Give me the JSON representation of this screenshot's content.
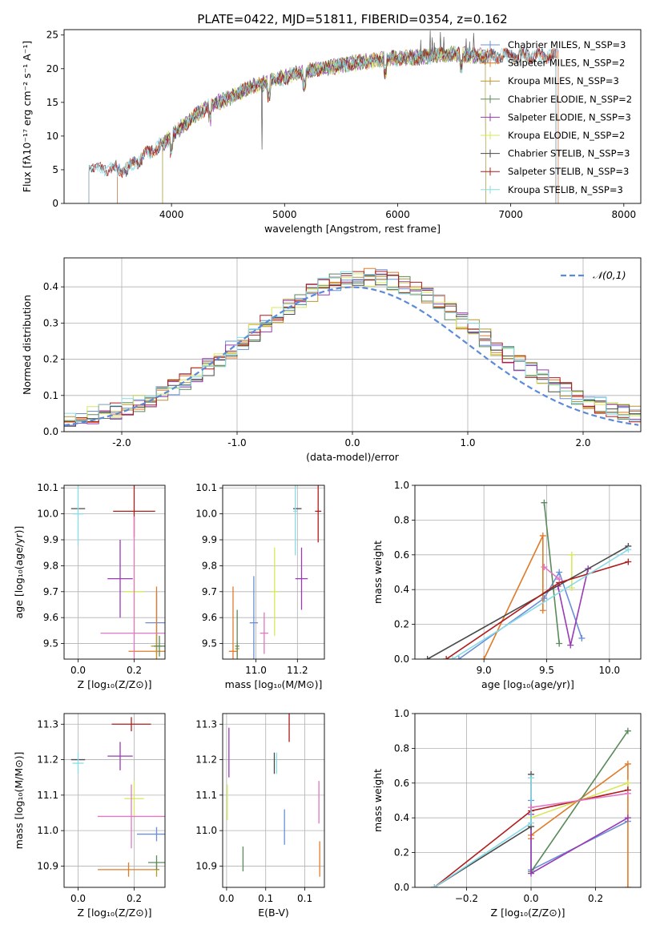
{
  "figure": {
    "title": "PLATE=0422, MJD=51811, FIBERID=0354, z=0.162"
  },
  "colors": [
    "#6a8fd8",
    "#e07b2a",
    "#b8972e",
    "#5a8a5a",
    "#9a3ab5",
    "#d7e85a",
    "#4a4a4a",
    "#b01c1c",
    "#88dbe6"
  ],
  "chart_data": [
    {
      "id": "spectrum",
      "type": "line",
      "xlabel": "wavelength [Angstrom, rest frame]",
      "ylabel": "Flux [fλ10⁻¹⁷ erg cm⁻² s⁻¹ A⁻¹]",
      "xlim": [
        3050,
        8150
      ],
      "ylim": [
        0,
        25.8
      ],
      "xticks": [
        4000,
        5000,
        6000,
        7000,
        8000
      ],
      "yticks": [
        0,
        5,
        10,
        15,
        20,
        25
      ],
      "legend": "right",
      "spectrum_anchor": {
        "x": [
          3270,
          3400,
          3600,
          3800,
          3950,
          4100,
          4300,
          4500,
          4700,
          4900,
          5100,
          5300,
          5600,
          5900,
          6200,
          6500,
          6800,
          7100,
          7400
        ],
        "y": [
          5.3,
          5.2,
          5.0,
          7.6,
          9.2,
          11.5,
          14.2,
          15.6,
          17.3,
          18.2,
          19.2,
          20.0,
          20.8,
          21.5,
          21.7,
          22.2,
          21.8,
          22.0,
          21.9
        ]
      },
      "series": [
        {
          "name": "Chabrier MILES, N_SSP=3",
          "range": [
            3520,
            7420
          ]
        },
        {
          "name": "Salpeter MILES, N_SSP=2",
          "range": [
            3520,
            7420
          ]
        },
        {
          "name": "Kroupa MILES, N_SSP=3",
          "range": [
            3920,
            6780
          ]
        },
        {
          "name": "Chabrier ELODIE, N_SSP=2",
          "range": [
            3920,
            6780
          ]
        },
        {
          "name": "Salpeter ELODIE, N_SSP=3",
          "range": [
            3920,
            6780
          ]
        },
        {
          "name": "Kroupa ELODIE, N_SSP=2",
          "range": [
            3920,
            6780
          ]
        },
        {
          "name": "Chabrier STELIB, N_SSP=3",
          "range": [
            3270,
            7400
          ]
        },
        {
          "name": "Salpeter STELIB, N_SSP=3",
          "range": [
            3270,
            7400
          ]
        },
        {
          "name": "Kroupa STELIB, N_SSP=3",
          "range": [
            3270,
            7400
          ]
        }
      ]
    },
    {
      "id": "residuals",
      "type": "histogram",
      "xlabel": "(data-model)/error",
      "ylabel": "Normed distribution",
      "xlim": [
        -2.5,
        2.5
      ],
      "ylim": [
        0,
        0.48
      ],
      "xticks": [
        -2,
        -1,
        0,
        1,
        2
      ],
      "yticks": [
        0.0,
        0.1,
        0.2,
        0.3,
        0.4
      ],
      "grid": true,
      "legend": "top-right",
      "reference": {
        "name": "𝒩(0,1)",
        "mean": 0,
        "sigma": 1
      }
    },
    {
      "id": "age-vs-Z",
      "type": "scatter",
      "xlabel": "Z [log₁₀(Z/Z⊙)]",
      "ylabel": "age  [log₁₀(age/yr)]",
      "xlim": [
        -0.05,
        0.31
      ],
      "ylim": [
        9.44,
        10.11
      ],
      "xticks": [
        0.0,
        0.2
      ],
      "yticks": [
        9.5,
        9.6,
        9.7,
        9.8,
        9.9,
        10.0,
        10.1
      ],
      "grid": true,
      "points": [
        {
          "c": 0,
          "x": 0.28,
          "y": 9.58,
          "ex": 0.04,
          "ey": 0.12
        },
        {
          "c": 1,
          "x": 0.28,
          "y": 9.47,
          "ex": 0.1,
          "ey": 0.25
        },
        {
          "c": 2,
          "x": 0.28,
          "y": 9.49,
          "ex": 0.02,
          "ey": 0.05
        },
        {
          "c": 3,
          "x": 0.29,
          "y": 9.49,
          "ex": 0.02,
          "ey": 0.04
        },
        {
          "c": 4,
          "x": 0.15,
          "y": 9.75,
          "ex": 0.045,
          "ey": 0.15
        },
        {
          "c": 5,
          "x": 0.2,
          "y": 9.7,
          "ex": 0.035,
          "ey": 0.17
        },
        {
          "c": 6,
          "x": 0.0,
          "y": 10.02,
          "ex": 0.025,
          "ey": 0.0
        },
        {
          "c": 7,
          "x": 0.2,
          "y": 10.01,
          "ex": 0.075,
          "ey": 0.1
        },
        {
          "c": 8,
          "x": 0.0,
          "y": 10.0,
          "ex": 0.02,
          "ey": 0.12
        },
        {
          "c": 9,
          "x": 0.2,
          "y": 9.54,
          "ex": 0.12,
          "ey": 0.45
        }
      ]
    },
    {
      "id": "age-vs-mass",
      "type": "scatter",
      "xlabel": "mass [log₁₀(M/M⊙)]",
      "ylabel": "",
      "xlim": [
        10.84,
        11.33
      ],
      "ylim": [
        9.44,
        10.11
      ],
      "xticks": [
        11.0,
        11.2
      ],
      "yticks": [
        9.5,
        9.6,
        9.7,
        9.8,
        9.9,
        10.0,
        10.1
      ],
      "grid": true,
      "points": [
        {
          "c": 0,
          "x": 10.99,
          "y": 9.58,
          "ex": 0.02,
          "ey": 0.18
        },
        {
          "c": 1,
          "x": 10.89,
          "y": 9.47,
          "ex": 0.02,
          "ey": 0.25
        },
        {
          "c": 2,
          "x": 10.91,
          "y": 9.48,
          "ex": 0.01,
          "ey": 0.03
        },
        {
          "c": 3,
          "x": 10.91,
          "y": 9.49,
          "ex": 0.01,
          "ey": 0.14
        },
        {
          "c": 4,
          "x": 11.22,
          "y": 9.75,
          "ex": 0.03,
          "ey": 0.12
        },
        {
          "c": 5,
          "x": 11.09,
          "y": 9.7,
          "ex": 0.02,
          "ey": 0.17
        },
        {
          "c": 6,
          "x": 11.2,
          "y": 10.02,
          "ex": 0.02,
          "ey": 0.0
        },
        {
          "c": 7,
          "x": 11.3,
          "y": 10.01,
          "ex": 0.015,
          "ey": 0.12
        },
        {
          "c": 8,
          "x": 11.19,
          "y": 10.01,
          "ex": 0.01,
          "ey": 0.17
        },
        {
          "c": 9,
          "x": 11.04,
          "y": 9.54,
          "ex": 0.02,
          "ey": 0.08
        }
      ]
    },
    {
      "id": "weight-vs-age",
      "type": "line",
      "xlabel": "age  [log₁₀(age/yr)]",
      "ylabel": "mass weight",
      "xlim": [
        8.45,
        10.25
      ],
      "ylim": [
        0,
        1
      ],
      "xticks": [
        9.0,
        9.5,
        10.0
      ],
      "yticks": [
        0.0,
        0.2,
        0.4,
        0.6,
        0.8,
        1.0
      ],
      "grid": true,
      "series": [
        {
          "c": 0,
          "x": [
            8.8,
            9.48,
            9.6,
            9.78
          ],
          "y": [
            0.0,
            0.35,
            0.5,
            0.12
          ]
        },
        {
          "c": 1,
          "x": [
            9.0,
            9.47,
            9.47
          ],
          "y": [
            0.0,
            0.71,
            0.28
          ]
        },
        {
          "c": 3,
          "x": [
            9.48,
            9.6
          ],
          "y": [
            0.9,
            0.09
          ]
        },
        {
          "c": 4,
          "x": [
            9.59,
            9.69,
            9.83
          ],
          "y": [
            0.42,
            0.08,
            0.52
          ]
        },
        {
          "c": 5,
          "x": [
            9.7,
            9.7
          ],
          "y": [
            0.6,
            0.41
          ]
        },
        {
          "c": 6,
          "x": [
            8.55,
            10.15
          ],
          "y": [
            0.0,
            0.65
          ]
        },
        {
          "c": 7,
          "x": [
            8.7,
            9.6,
            10.15
          ],
          "y": [
            0.0,
            0.44,
            0.56
          ]
        },
        {
          "c": 8,
          "x": [
            8.75,
            10.15
          ],
          "y": [
            0.0,
            0.63
          ]
        },
        {
          "c": 9,
          "x": [
            9.48,
            9.6
          ],
          "y": [
            0.53,
            0.46
          ]
        }
      ]
    },
    {
      "id": "mass-vs-Z",
      "type": "scatter",
      "xlabel": "Z [log₁₀(Z/Z⊙)]",
      "ylabel": "mass [log₁₀(M/M⊙)]",
      "xlim": [
        -0.05,
        0.31
      ],
      "ylim": [
        10.84,
        11.33
      ],
      "xticks": [
        0.0,
        0.2
      ],
      "yticks": [
        10.9,
        11.0,
        11.1,
        11.2,
        11.3
      ],
      "grid": true,
      "points": [
        {
          "c": 0,
          "x": 0.28,
          "y": 10.99,
          "ex": 0.07,
          "ey": 0.02
        },
        {
          "c": 1,
          "x": 0.18,
          "y": 10.89,
          "ex": 0.11,
          "ey": 0.02
        },
        {
          "c": 2,
          "x": 0.28,
          "y": 10.89,
          "ex": 0.01,
          "ey": 0.02
        },
        {
          "c": 3,
          "x": 0.28,
          "y": 10.91,
          "ex": 0.03,
          "ey": 0.02
        },
        {
          "c": 4,
          "x": 0.15,
          "y": 11.21,
          "ex": 0.045,
          "ey": 0.04
        },
        {
          "c": 5,
          "x": 0.2,
          "y": 11.09,
          "ex": 0.035,
          "ey": 0.05
        },
        {
          "c": 6,
          "x": 0.0,
          "y": 11.2,
          "ex": 0.025,
          "ey": 0.0
        },
        {
          "c": 7,
          "x": 0.19,
          "y": 11.3,
          "ex": 0.07,
          "ey": 0.02
        },
        {
          "c": 8,
          "x": 0.0,
          "y": 11.19,
          "ex": 0.02,
          "ey": 0.03
        },
        {
          "c": 9,
          "x": 0.19,
          "y": 11.04,
          "ex": 0.12,
          "ey": 0.09
        }
      ]
    },
    {
      "id": "mass-vs-ebv",
      "type": "scatter",
      "xlabel": "E(B-V)",
      "ylabel": "",
      "xlim": [
        -0.005,
        0.125
      ],
      "ylim": [
        10.84,
        11.33
      ],
      "xticks": [
        0.0,
        0.05,
        0.1
      ],
      "yticks": [
        10.9,
        11.0,
        11.1,
        11.2,
        11.3
      ],
      "grid": true,
      "points": [
        {
          "c": 0,
          "x": 0.074,
          "y": 11.01,
          "ex": 0.0,
          "ey": 0.05
        },
        {
          "c": 1,
          "x": 0.119,
          "y": 10.92,
          "ex": 0.0,
          "ey": 0.05
        },
        {
          "c": 3,
          "x": 0.021,
          "y": 10.92,
          "ex": 0.0,
          "ey": 0.035
        },
        {
          "c": 4,
          "x": 0.003,
          "y": 11.22,
          "ex": 0.0,
          "ey": 0.07
        },
        {
          "c": 5,
          "x": 0.001,
          "y": 11.08,
          "ex": 0.0,
          "ey": 0.05
        },
        {
          "c": 6,
          "x": 0.061,
          "y": 11.19,
          "ex": 0.0,
          "ey": 0.03
        },
        {
          "c": 7,
          "x": 0.08,
          "y": 11.29,
          "ex": 0.0,
          "ey": 0.04
        },
        {
          "c": 8,
          "x": 0.064,
          "y": 11.19,
          "ex": 0.0,
          "ey": 0.03
        },
        {
          "c": 9,
          "x": 0.118,
          "y": 11.08,
          "ex": 0.0,
          "ey": 0.06
        }
      ]
    },
    {
      "id": "weight-vs-Z",
      "type": "line",
      "xlabel": "Z [log₁₀(Z/Z⊙)]",
      "ylabel": "mass weight",
      "xlim": [
        -0.36,
        0.34
      ],
      "ylim": [
        0,
        1
      ],
      "xticks": [
        -0.2,
        0.0,
        0.2
      ],
      "yticks": [
        0.0,
        0.2,
        0.4,
        0.6,
        0.8,
        1.0
      ],
      "grid": true,
      "series": [
        {
          "c": 0,
          "x": [
            0.0,
            0.0,
            0.3
          ],
          "y": [
            0.5,
            0.1,
            0.38
          ]
        },
        {
          "c": 1,
          "x": [
            0.0,
            0.0,
            0.3,
            0.3
          ],
          "y": [
            0.28,
            0.3,
            0.71,
            0.0
          ]
        },
        {
          "c": 3,
          "x": [
            0.0,
            0.3
          ],
          "y": [
            0.09,
            0.9
          ]
        },
        {
          "c": 4,
          "x": [
            0.0,
            0.0,
            0.3
          ],
          "y": [
            0.42,
            0.08,
            0.4
          ]
        },
        {
          "c": 5,
          "x": [
            0.0,
            0.3
          ],
          "y": [
            0.4,
            0.6
          ]
        },
        {
          "c": 6,
          "x": [
            -0.3,
            0.0,
            0.0
          ],
          "y": [
            0.0,
            0.35,
            0.65
          ]
        },
        {
          "c": 7,
          "x": [
            -0.3,
            0.0,
            0.3
          ],
          "y": [
            0.0,
            0.44,
            0.56
          ]
        },
        {
          "c": 8,
          "x": [
            -0.3,
            0.0,
            0.0
          ],
          "y": [
            0.0,
            0.37,
            0.63
          ]
        },
        {
          "c": 9,
          "x": [
            0.0,
            0.3
          ],
          "y": [
            0.46,
            0.54
          ]
        }
      ]
    }
  ]
}
